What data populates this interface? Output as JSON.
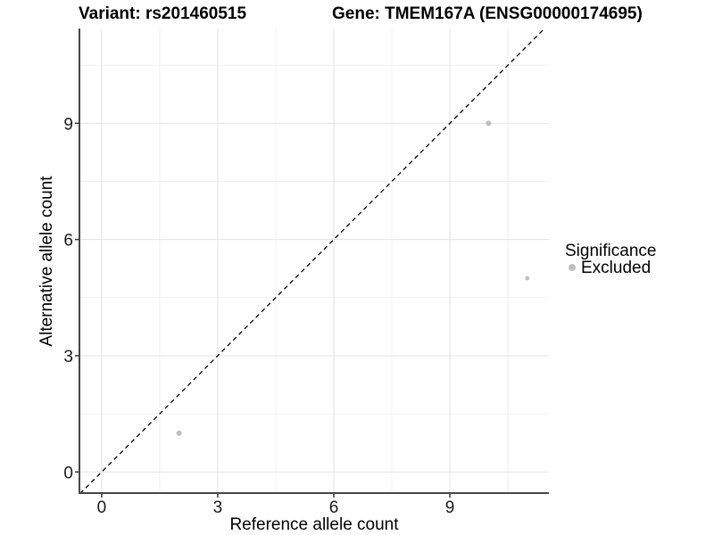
{
  "figure": {
    "title_left": "Variant: rs201460515",
    "title_right": "Gene: TMEM167A (ENSG00000174695)"
  },
  "chart_data": {
    "type": "scatter",
    "title": "Variant: rs201460515 — Gene: TMEM167A (ENSG00000174695)",
    "xlabel": "Reference allele count",
    "ylabel": "Alternative allele count",
    "xlim": [
      -0.57,
      11.56
    ],
    "ylim": [
      -0.55,
      11.45
    ],
    "x_ticks": [
      0,
      3,
      6,
      9
    ],
    "y_ticks": [
      0,
      3,
      6,
      9
    ],
    "x_minor_ticks": [
      1.5,
      4.5,
      7.5,
      10.5
    ],
    "y_minor_ticks": [
      1.5,
      4.5,
      7.5,
      10.5
    ],
    "grid": "major-and-minor",
    "identity_line": {
      "slope": 1,
      "intercept": 0,
      "style": "dashed",
      "color": "#000000"
    },
    "series": [
      {
        "name": "Excluded",
        "color": "#bebebe",
        "points": [
          {
            "x": 2,
            "y": 1,
            "size": 3
          },
          {
            "x": 10,
            "y": 9,
            "size": 3
          },
          {
            "x": 11,
            "y": 5,
            "size": 2.4
          }
        ]
      }
    ],
    "legend": {
      "title": "Significance",
      "position": "right",
      "items": [
        {
          "label": "Excluded",
          "color": "#bebebe",
          "marker": "circle-icon"
        }
      ]
    },
    "colors": {
      "grid_major": "#e3e3e3",
      "grid_minor": "#f0f0f0",
      "axis_line": "#464646",
      "tick_mark": "#333333",
      "point": "#bebebe",
      "background": "#ffffff"
    }
  }
}
